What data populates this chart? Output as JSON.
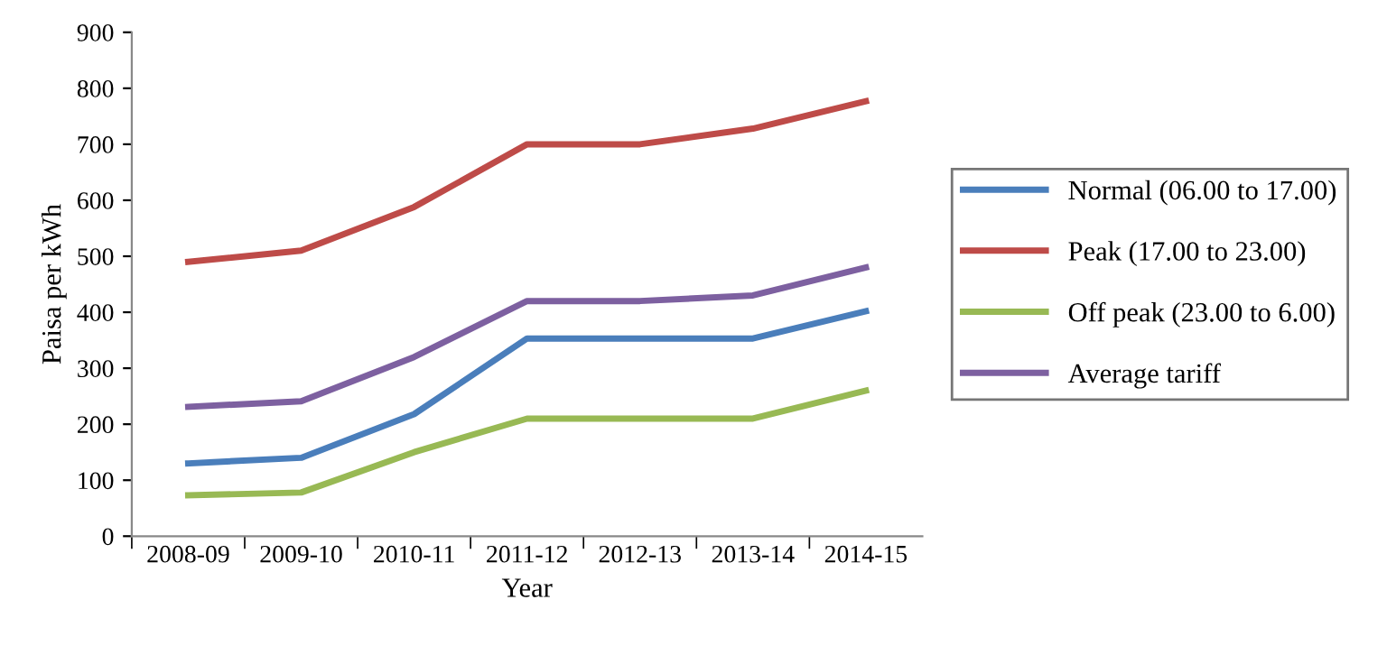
{
  "chart_data": {
    "type": "line",
    "xlabel": "Year",
    "ylabel": "Paisa per kWh",
    "categories": [
      "2008-09",
      "2009-10",
      "2010-11",
      "2011-12",
      "2012-13",
      "2013-14",
      "2014-15"
    ],
    "series": [
      {
        "name": "Normal (06.00 to 17.00)",
        "color": "#4a7ebb",
        "values": [
          130,
          140,
          218,
          353,
          353,
          353,
          402
        ]
      },
      {
        "name": "Peak (17.00 to 23.00)",
        "color": "#be4b48",
        "values": [
          490,
          510,
          588,
          700,
          700,
          728,
          777
        ]
      },
      {
        "name": "Off peak (23.00 to 6.00)",
        "color": "#98b954",
        "values": [
          73,
          78,
          150,
          210,
          210,
          210,
          260
        ]
      },
      {
        "name": "Average tariff",
        "color": "#7d60a0",
        "values": [
          231,
          241,
          320,
          420,
          420,
          430,
          480
        ]
      }
    ],
    "ylim": [
      0,
      900
    ],
    "yticks": [
      0,
      100,
      200,
      300,
      400,
      500,
      600,
      700,
      800,
      900
    ],
    "grid": false,
    "legend": "right",
    "marker": "none",
    "line_style": "solid"
  }
}
